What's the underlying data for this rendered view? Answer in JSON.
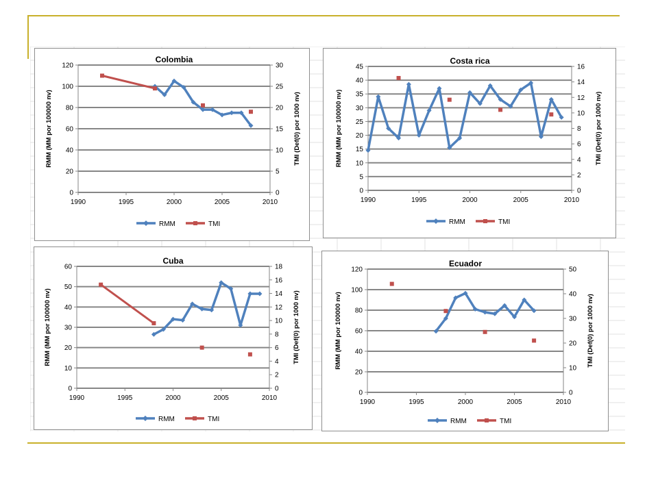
{
  "charts": [
    {
      "id": "colombia",
      "title": "Colombia",
      "ylabel_left": "RMM (MM por 100000 nv)",
      "ylabel_right": "TMI (Def(0) por 1000 nv)",
      "legend": [
        "RMM",
        "TMI"
      ],
      "x_ticks": [
        "1990",
        "1995",
        "2000",
        "2005",
        "2010"
      ],
      "yl_ticks": [
        "0",
        "20",
        "40",
        "60",
        "80",
        "100",
        "120"
      ],
      "yr_ticks": [
        "0",
        "5",
        "10",
        "15",
        "20",
        "25",
        "30"
      ]
    },
    {
      "id": "costarica",
      "title": "Costa rica",
      "ylabel_left": "RMM (MM por 100000 nv)",
      "ylabel_right": "TMI (Def(0) por 1000 nv)",
      "legend": [
        "RMM",
        "TMI"
      ],
      "x_ticks": [
        "1990",
        "1995",
        "2000",
        "2005",
        "2010"
      ],
      "yl_ticks": [
        "0",
        "5",
        "10",
        "15",
        "20",
        "25",
        "30",
        "35",
        "40",
        "45"
      ],
      "yr_ticks": [
        "0",
        "2",
        "4",
        "6",
        "8",
        "10",
        "12",
        "14",
        "16"
      ]
    },
    {
      "id": "cuba",
      "title": "Cuba",
      "ylabel_left": "RMM (MM por 100000 nv)",
      "ylabel_right": "TMI (Def(0) por 1000 nv)",
      "legend": [
        "RMM",
        "TMI"
      ],
      "x_ticks": [
        "1990",
        "1995",
        "2000",
        "2005",
        "2010"
      ],
      "yl_ticks": [
        "0",
        "10",
        "20",
        "30",
        "40",
        "50",
        "60"
      ],
      "yr_ticks": [
        "0",
        "2",
        "4",
        "6",
        "8",
        "10",
        "12",
        "14",
        "16",
        "18"
      ]
    },
    {
      "id": "ecuador",
      "title": "Ecuador",
      "ylabel_left": "RMM (MM por 100000 nv)",
      "ylabel_right": "TMI (Def(0) por 1000 nv)",
      "legend": [
        "RMM",
        "TMI"
      ],
      "x_ticks": [
        "1990",
        "1995",
        "2000",
        "2005",
        "2010"
      ],
      "yl_ticks": [
        "0",
        "20",
        "40",
        "60",
        "80",
        "100",
        "120"
      ],
      "yr_ticks": [
        "0",
        "10",
        "20",
        "30",
        "40",
        "50"
      ]
    }
  ],
  "chart_data": [
    {
      "type": "line",
      "title": "Colombia",
      "xlabel": "",
      "ylabel": "RMM (MM por 100000 nv)",
      "ylabel_right": "TMI (Def(0) por 1000 nv)",
      "xlim": [
        1990,
        2010
      ],
      "ylim": [
        0,
        120
      ],
      "ylim_right": [
        0,
        30
      ],
      "grid": "horizontal major",
      "legend_position": "bottom",
      "series": [
        {
          "name": "RMM",
          "axis": "left",
          "color": "#4f81bd",
          "x": [
            1998,
            1999,
            2000,
            2001,
            2002,
            2003,
            2004,
            2005,
            2006,
            2007,
            2008
          ],
          "y": [
            100,
            92,
            105,
            99,
            85,
            78,
            78,
            73,
            75,
            75,
            63
          ]
        },
        {
          "name": "TMI",
          "axis": "right",
          "color": "#c0504d",
          "segments": [
            {
              "x": [
                1992.5,
                1998
              ],
              "y": [
                27.5,
                24.5
              ]
            }
          ],
          "points": {
            "x": [
              2003,
              2008
            ],
            "y": [
              20.5,
              19
            ]
          }
        }
      ]
    },
    {
      "type": "line",
      "title": "Costa rica",
      "xlabel": "",
      "ylabel": "RMM (MM por 100000 nv)",
      "ylabel_right": "TMI (Def(0) por 1000 nv)",
      "xlim": [
        1990,
        2010
      ],
      "ylim": [
        0,
        45
      ],
      "ylim_right": [
        0,
        16
      ],
      "grid": "horizontal major",
      "legend_position": "bottom",
      "series": [
        {
          "name": "RMM",
          "axis": "left",
          "color": "#4f81bd",
          "x": [
            1990,
            1991,
            1992,
            1993,
            1994,
            1995,
            1996,
            1997,
            1998,
            1999,
            2000,
            2001,
            2002,
            2003,
            2004,
            2005,
            2006,
            2007,
            2008,
            2009
          ],
          "y": [
            14.5,
            34,
            22.5,
            19,
            38.5,
            20,
            29,
            37,
            15.5,
            19,
            35.5,
            31.5,
            38,
            33,
            30.5,
            36.5,
            39,
            19.5,
            33,
            26.5
          ]
        },
        {
          "name": "TMI",
          "axis": "right",
          "color": "#c0504d",
          "points": {
            "x": [
              1993,
              1998,
              2003,
              2008
            ],
            "y": [
              14.5,
              11.7,
              10.4,
              9.8
            ]
          }
        }
      ]
    },
    {
      "type": "line",
      "title": "Cuba",
      "xlabel": "",
      "ylabel": "RMM (MM por 100000 nv)",
      "ylabel_right": "TMI (Def(0) por 1000 nv)",
      "xlim": [
        1990,
        2010
      ],
      "ylim": [
        0,
        60
      ],
      "ylim_right": [
        0,
        18
      ],
      "grid": "horizontal major",
      "legend_position": "bottom",
      "series": [
        {
          "name": "RMM",
          "axis": "left",
          "color": "#4f81bd",
          "x": [
            1998,
            1999,
            2000,
            2001,
            2002,
            2003,
            2004,
            2005,
            2006,
            2007,
            2008,
            2009
          ],
          "y": [
            26.5,
            29,
            34,
            33.5,
            41.5,
            39,
            38.5,
            52,
            49,
            31,
            46.5,
            46.5
          ]
        },
        {
          "name": "TMI",
          "axis": "right",
          "color": "#c0504d",
          "segments": [
            {
              "x": [
                1992.5,
                1998
              ],
              "y": [
                15.3,
                9.6
              ]
            }
          ],
          "points": {
            "x": [
              2003,
              2008
            ],
            "y": [
              6,
              5
            ]
          }
        }
      ]
    },
    {
      "type": "line",
      "title": "Ecuador",
      "xlabel": "",
      "ylabel": "RMM (MM por 100000 nv)",
      "ylabel_right": "TMI (Def(0) por 1000 nv)",
      "xlim": [
        1990,
        2010
      ],
      "ylim": [
        0,
        120
      ],
      "ylim_right": [
        0,
        50
      ],
      "grid": "horizontal major",
      "legend_position": "bottom",
      "series": [
        {
          "name": "RMM",
          "axis": "left",
          "color": "#4f81bd",
          "x": [
            1997,
            1998,
            1999,
            2000,
            2001,
            2002,
            2003,
            2004,
            2005,
            2006,
            2007
          ],
          "y": [
            59.5,
            72,
            92,
            96.5,
            81,
            78,
            76.5,
            84.5,
            73.5,
            90,
            79.5
          ]
        },
        {
          "name": "TMI",
          "axis": "right",
          "color": "#c0504d",
          "points": {
            "x": [
              1992.5,
              1998,
              2002,
              2007
            ],
            "y": [
              44,
              33,
              24.5,
              21
            ]
          }
        }
      ]
    }
  ]
}
